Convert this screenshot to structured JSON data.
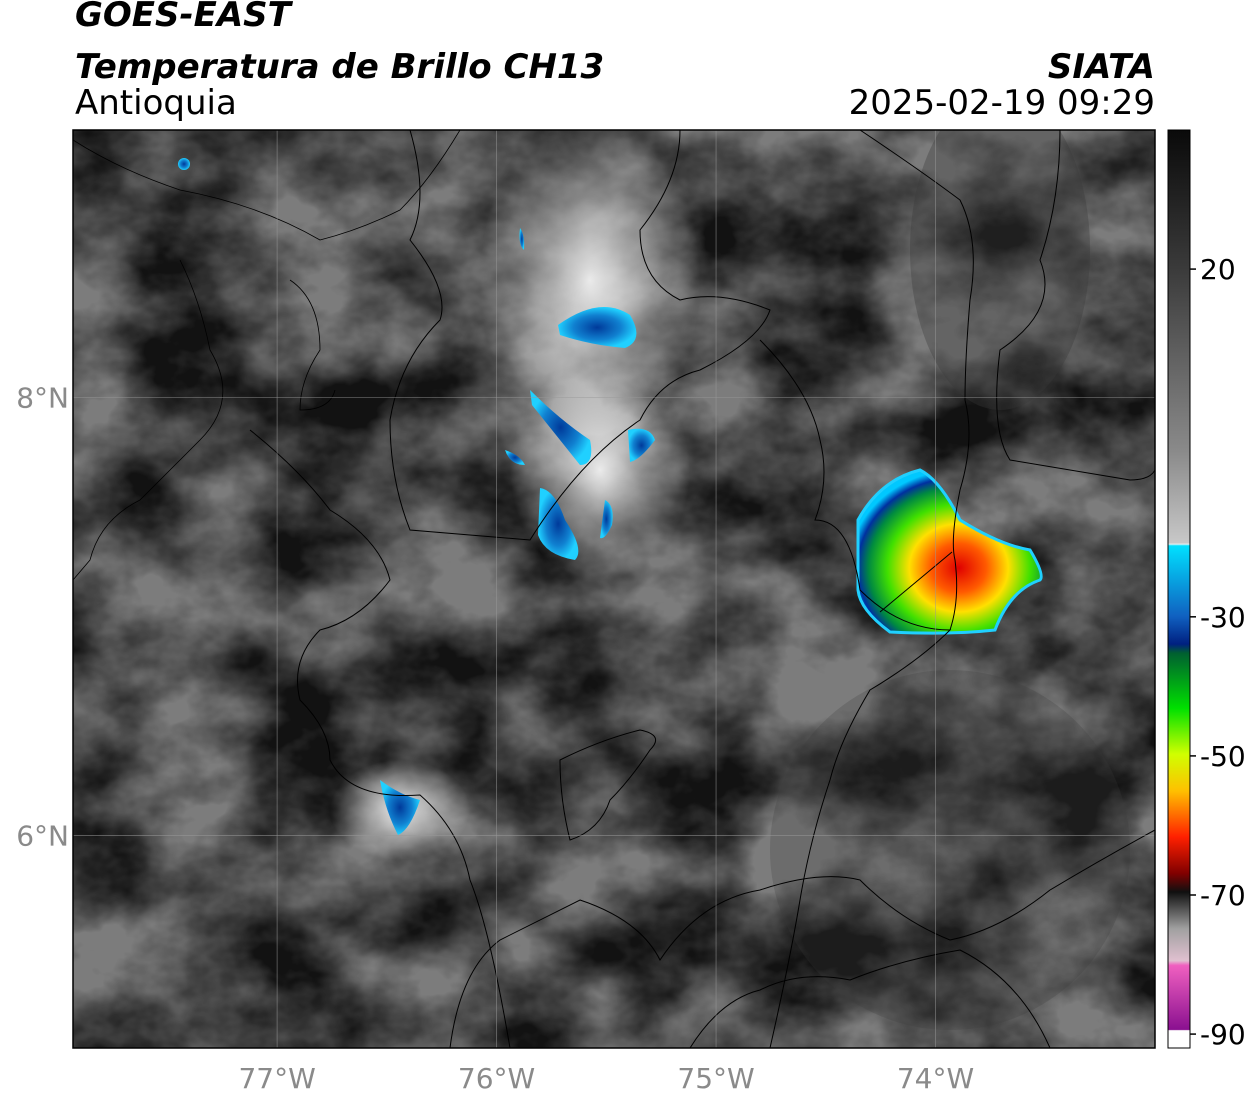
{
  "header": {
    "title": "GOES-EAST",
    "subtitle": "Temperatura de Brillo CH13",
    "region": "Antioquia",
    "source": "SIATA",
    "timestamp": "2025-02-19 09:29"
  },
  "map": {
    "xlim": [
      -77.93,
      -73.0
    ],
    "ylim": [
      5.03,
      9.22
    ],
    "xticks": [
      {
        "value": -77,
        "label": "77°W"
      },
      {
        "value": -76,
        "label": "76°W"
      },
      {
        "value": -75,
        "label": "75°W"
      },
      {
        "value": -74,
        "label": "74°W"
      }
    ],
    "yticks": [
      {
        "value": 8,
        "label": "8°N"
      },
      {
        "value": 6,
        "label": "6°N"
      }
    ]
  },
  "colorbar": {
    "lim": [
      -92,
      40
    ],
    "ticks": [
      20,
      -30,
      -50,
      -70,
      -90
    ]
  }
}
